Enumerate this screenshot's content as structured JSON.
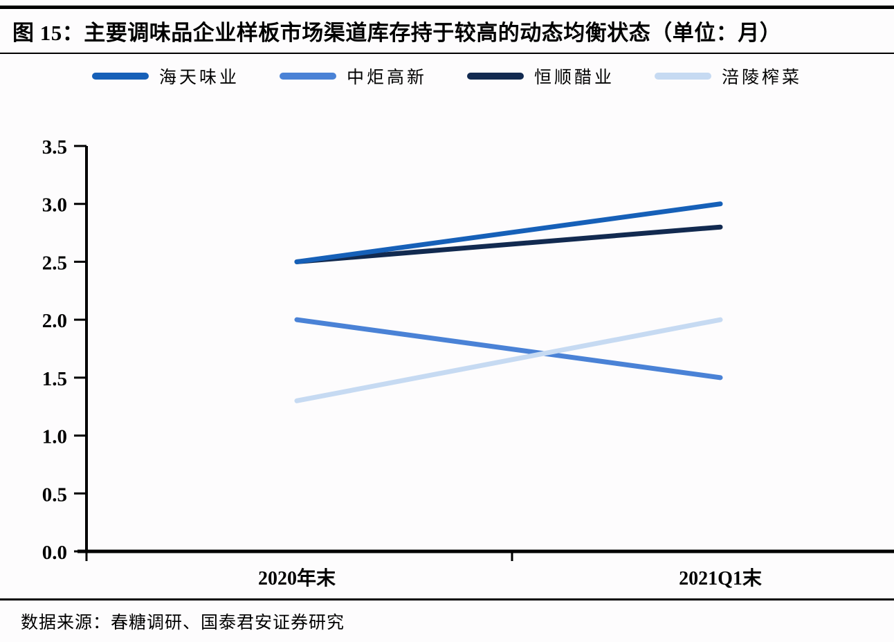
{
  "title": "图 15：主要调味品企业样板市场渠道库存持于较高的动态均衡状态（单位：月）",
  "source": "数据来源：春糖调研、国泰君安证券研究",
  "colors": {
    "axis": "#000000",
    "background": "#fdfcfd",
    "rule": "#000000"
  },
  "chart_data": {
    "type": "line",
    "categories": [
      "2020年末",
      "2021Q1末"
    ],
    "series": [
      {
        "name": "海天味业",
        "values": [
          2.5,
          3.0
        ],
        "color": "#1660B8"
      },
      {
        "name": "中炬高新",
        "values": [
          2.0,
          1.5
        ],
        "color": "#4A82D6"
      },
      {
        "name": "恒顺醋业",
        "values": [
          2.5,
          2.8
        ],
        "color": "#122A50"
      },
      {
        "name": "涪陵榨菜",
        "values": [
          1.3,
          2.0
        ],
        "color": "#C6DAF2"
      }
    ],
    "draw_order": [
      2,
      1,
      0,
      3
    ],
    "title": "主要调味品企业样板市场渠道库存持于较高的动态均衡状态",
    "unit": "月",
    "xlabel": "",
    "ylabel": "",
    "ylim": [
      0.0,
      3.5
    ],
    "yticks": [
      "0.0",
      "0.5",
      "1.0",
      "1.5",
      "2.0",
      "2.5",
      "3.0",
      "3.5"
    ],
    "grid": false,
    "legend_position": "top"
  }
}
